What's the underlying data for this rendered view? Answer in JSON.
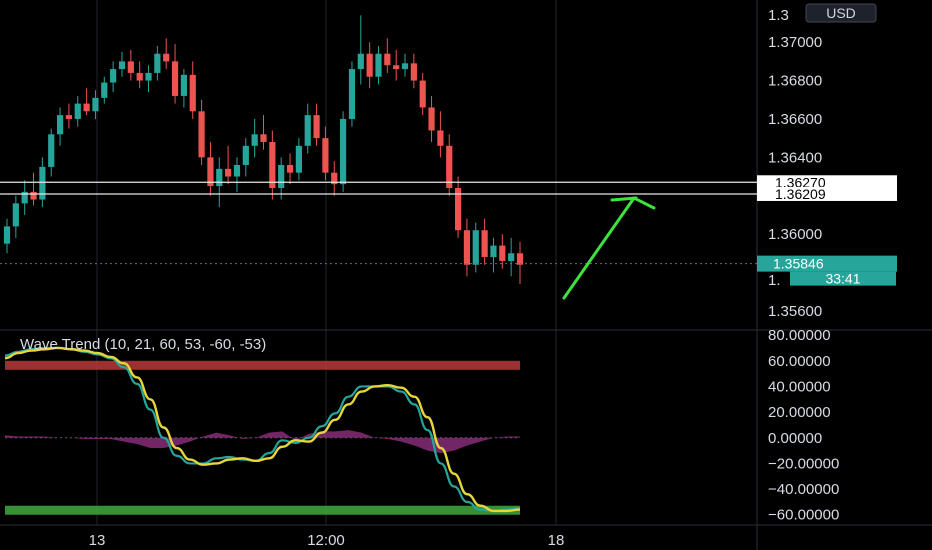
{
  "currency_button": "USD",
  "price_axis": {
    "ticks": [
      "1.37000",
      "1.36800",
      "1.36600",
      "1.36400",
      "1.36000",
      "1.35600"
    ],
    "top_partial": "1.3",
    "mid_partial": "1.",
    "ymin": 1.355,
    "ymax": 1.3722
  },
  "price_tags": [
    {
      "value": 1.3627,
      "label": "1.36270",
      "bg": "#ffffff",
      "fg": "#000000"
    },
    {
      "value": 1.36209,
      "label": "1.36209",
      "bg": "#ffffff",
      "fg": "#000000"
    }
  ],
  "last_price": {
    "value": 1.35846,
    "label": "1.35846",
    "countdown": "33:41",
    "bg": "#26a69a"
  },
  "time_axis": [
    "13",
    "12:00",
    "18"
  ],
  "indicator": {
    "title": "Wave Trend (10, 21, 60, 53, -60, -53)",
    "ticks": [
      "80.00000",
      "60.00000",
      "40.00000",
      "20.00000",
      "0.00000",
      "−20.00000",
      "−40.00000",
      "−60.00000"
    ],
    "ymin": -68,
    "ymax": 84
  },
  "colors": {
    "up": "#26a69a",
    "down": "#ef5350",
    "wt1": "#26a69a",
    "wt2": "#e6d63a",
    "hist": "#8e2f7f",
    "overbought": "#b83a3a",
    "oversold": "#3faa3f",
    "arrow": "#3de33d"
  },
  "chart_data": [
    {
      "type": "candlestick",
      "title": "",
      "x_ticks": [
        "13",
        "12:00",
        "18"
      ],
      "ylim": [
        1.355,
        1.3722
      ],
      "horizontal_levels": [
        1.3627,
        1.36209
      ],
      "last_price": 1.35846,
      "series": [
        {
          "values": [
            [
              1.3595,
              1.3608,
              1.359,
              1.3604
            ],
            [
              1.3604,
              1.362,
              1.3598,
              1.3616
            ],
            [
              1.3616,
              1.3628,
              1.361,
              1.3622
            ],
            [
              1.3622,
              1.3632,
              1.3615,
              1.3618
            ],
            [
              1.3618,
              1.364,
              1.3614,
              1.3635
            ],
            [
              1.3635,
              1.3655,
              1.363,
              1.3652
            ],
            [
              1.3652,
              1.3666,
              1.3646,
              1.3662
            ],
            [
              1.3662,
              1.3668,
              1.3655,
              1.366
            ],
            [
              1.366,
              1.3672,
              1.3656,
              1.3668
            ],
            [
              1.3668,
              1.3676,
              1.3662,
              1.3664
            ],
            [
              1.3664,
              1.3675,
              1.366,
              1.3671
            ],
            [
              1.3671,
              1.3682,
              1.3668,
              1.3679
            ],
            [
              1.3679,
              1.369,
              1.3674,
              1.3686
            ],
            [
              1.3686,
              1.3695,
              1.3682,
              1.369
            ],
            [
              1.369,
              1.3696,
              1.368,
              1.3684
            ],
            [
              1.3684,
              1.369,
              1.3676,
              1.368
            ],
            [
              1.368,
              1.3688,
              1.3674,
              1.3684
            ],
            [
              1.3684,
              1.3698,
              1.368,
              1.3694
            ],
            [
              1.3694,
              1.3702,
              1.3686,
              1.369
            ],
            [
              1.369,
              1.3699,
              1.3668,
              1.3672
            ],
            [
              1.3672,
              1.3686,
              1.3666,
              1.3683
            ],
            [
              1.3683,
              1.369,
              1.366,
              1.3664
            ],
            [
              1.3664,
              1.367,
              1.3636,
              1.364
            ],
            [
              1.364,
              1.3648,
              1.362,
              1.3625
            ],
            [
              1.3625,
              1.364,
              1.3614,
              1.3634
            ],
            [
              1.3634,
              1.3646,
              1.3626,
              1.363
            ],
            [
              1.363,
              1.364,
              1.3622,
              1.3636
            ],
            [
              1.3636,
              1.365,
              1.363,
              1.3646
            ],
            [
              1.3646,
              1.366,
              1.364,
              1.3652
            ],
            [
              1.3652,
              1.3662,
              1.3644,
              1.3648
            ],
            [
              1.3648,
              1.3654,
              1.3618,
              1.3624
            ],
            [
              1.3624,
              1.364,
              1.3618,
              1.3636
            ],
            [
              1.3636,
              1.3642,
              1.3626,
              1.3632
            ],
            [
              1.3632,
              1.365,
              1.3628,
              1.3646
            ],
            [
              1.3646,
              1.3668,
              1.3642,
              1.3662
            ],
            [
              1.3662,
              1.3668,
              1.3646,
              1.365
            ],
            [
              1.365,
              1.3656,
              1.3628,
              1.3632
            ],
            [
              1.3632,
              1.3638,
              1.362,
              1.3626
            ],
            [
              1.3626,
              1.3664,
              1.3622,
              1.366
            ],
            [
              1.366,
              1.369,
              1.3656,
              1.3686
            ],
            [
              1.3686,
              1.3714,
              1.3678,
              1.3694
            ],
            [
              1.3694,
              1.37,
              1.3676,
              1.3682
            ],
            [
              1.3682,
              1.3698,
              1.3678,
              1.3694
            ],
            [
              1.3694,
              1.3702,
              1.3684,
              1.3688
            ],
            [
              1.3688,
              1.3696,
              1.368,
              1.3686
            ],
            [
              1.3686,
              1.3694,
              1.3682,
              1.3689
            ],
            [
              1.3689,
              1.3694,
              1.3676,
              1.368
            ],
            [
              1.368,
              1.3684,
              1.3662,
              1.3666
            ],
            [
              1.3666,
              1.3672,
              1.3648,
              1.3654
            ],
            [
              1.3654,
              1.3664,
              1.364,
              1.3646
            ],
            [
              1.3646,
              1.3652,
              1.362,
              1.3624
            ],
            [
              1.3624,
              1.363,
              1.3598,
              1.3602
            ],
            [
              1.3602,
              1.3608,
              1.3578,
              1.3584
            ],
            [
              1.3584,
              1.3606,
              1.358,
              1.3602
            ],
            [
              1.3602,
              1.3608,
              1.3584,
              1.3588
            ],
            [
              1.3588,
              1.3598,
              1.358,
              1.3594
            ],
            [
              1.3594,
              1.36,
              1.3582,
              1.3586
            ],
            [
              1.3586,
              1.3598,
              1.3578,
              1.359
            ],
            [
              1.359,
              1.3596,
              1.3574,
              1.3584
            ]
          ]
        }
      ]
    },
    {
      "type": "line",
      "title": "Wave Trend (10, 21, 60, 53, -60, -53)",
      "ylim": [
        -68,
        84
      ],
      "bands": [
        {
          "from": 60,
          "to": 53
        },
        {
          "from": -53,
          "to": -60
        }
      ],
      "series": [
        {
          "values": [
            64,
            67,
            69,
            70,
            70,
            69,
            67,
            65,
            62,
            55,
            42,
            22,
            0,
            -14,
            -20,
            -20,
            -16,
            -15,
            -17,
            -18,
            -12,
            -2,
            -4,
            0,
            9,
            19,
            32,
            40,
            40,
            40,
            36,
            26,
            6,
            -20,
            -38,
            -50,
            -56,
            -57,
            -56,
            -55
          ]
        },
        {
          "values": [
            62,
            66,
            68,
            69,
            70,
            69,
            68,
            66,
            63,
            58,
            47,
            30,
            8,
            -8,
            -17,
            -21,
            -20,
            -17,
            -16,
            -18,
            -16,
            -7,
            -2,
            -3,
            4,
            14,
            26,
            36,
            40,
            41,
            39,
            32,
            16,
            -8,
            -28,
            -44,
            -53,
            -57,
            -57,
            -56
          ]
        },
        {
          "values": [
            2,
            1,
            1,
            1,
            0,
            0,
            -1,
            -1,
            -1,
            -3,
            -5,
            -8,
            -8,
            -6,
            -3,
            1,
            4,
            2,
            -1,
            0,
            4,
            5,
            -2,
            3,
            5,
            5,
            6,
            4,
            0,
            -1,
            -3,
            -6,
            -10,
            -12,
            -10,
            -6,
            -3,
            0,
            1,
            1
          ]
        }
      ]
    }
  ]
}
